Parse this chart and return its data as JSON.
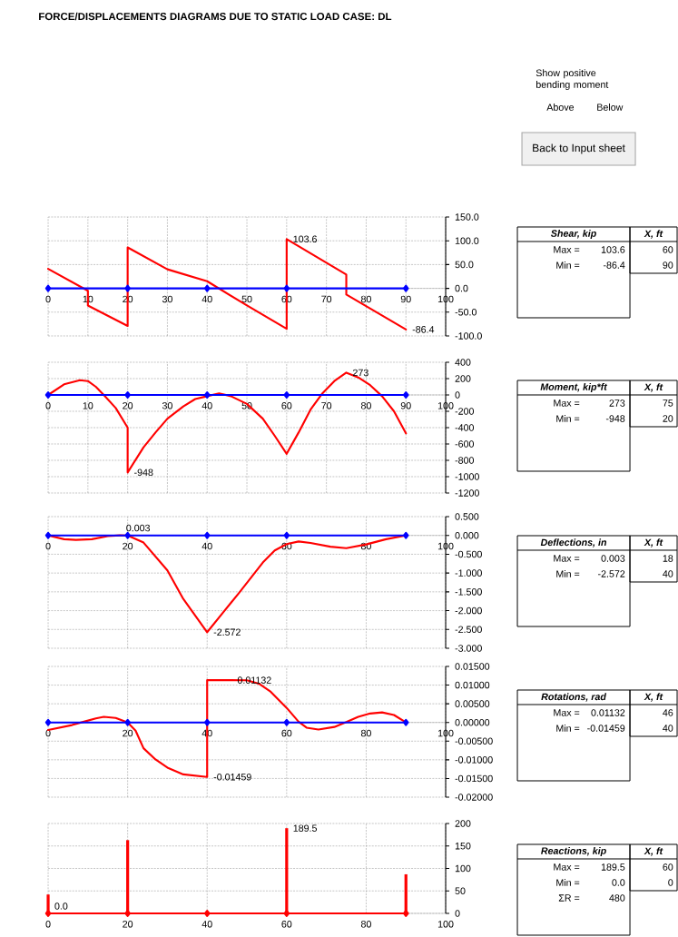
{
  "chart_data": [
    {
      "type": "other",
      "title": "FORCE/DISPLACEMENTS DIAGRAMS DUE TO STATIC LOAD CASE: DL",
      "annotations": [
        "Show positive bending moment",
        "Above",
        "Below",
        "Back to Input sheet"
      ]
    },
    {
      "type": "line",
      "xlim": [
        0,
        100
      ],
      "ylim": [
        -100,
        150
      ],
      "xticks": [
        0,
        10,
        20,
        30,
        40,
        50,
        60,
        70,
        80,
        90,
        100
      ],
      "yticks": [
        {
          "value": -100,
          "label": "-100.0"
        },
        {
          "value": -50,
          "label": "-50.0"
        },
        {
          "value": 0,
          "label": "0.0"
        },
        {
          "value": 50,
          "label": "50.0"
        },
        {
          "value": 100,
          "label": "100.0"
        },
        {
          "value": 150,
          "label": "150.0"
        }
      ],
      "grid": true,
      "series": [
        {
          "color": "#ff0000",
          "x": [
            0,
            10,
            10,
            20,
            20,
            30,
            40,
            50,
            60,
            60,
            75,
            75,
            90
          ],
          "values": [
            41,
            -5,
            -36,
            -79,
            86,
            40,
            15,
            -36,
            -85,
            103.6,
            29,
            -13,
            -86.4
          ]
        },
        {
          "color": "#0000ff",
          "marker": "diamond",
          "x": [
            0,
            20,
            40,
            60,
            90
          ],
          "values": [
            0,
            0,
            0,
            0,
            0
          ]
        }
      ],
      "annotations": [
        {
          "text": "103.6",
          "x": 60,
          "y": 103.6
        },
        {
          "text": "-86.4",
          "x": 90,
          "y": -86.4
        }
      ]
    },
    {
      "type": "other",
      "title": "Shear, kip",
      "annotations": [
        "X, ft",
        "Max =",
        "103.6",
        "60",
        "Min =",
        "-86.4",
        "90"
      ]
    },
    {
      "type": "line",
      "xlim": [
        0,
        100
      ],
      "ylim": [
        -1200,
        400
      ],
      "xticks": [
        0,
        10,
        20,
        30,
        40,
        50,
        60,
        70,
        80,
        90,
        100
      ],
      "yticks": [
        -1200,
        -1000,
        -800,
        -600,
        -400,
        -200,
        0,
        200,
        400
      ],
      "grid": true,
      "series": [
        {
          "color": "#ff0000",
          "x": [
            0,
            4,
            8,
            10,
            12,
            14,
            17,
            20,
            20,
            24,
            27,
            30,
            34,
            37,
            40,
            43,
            46,
            50,
            54,
            57,
            60,
            63,
            66,
            69,
            72,
            75,
            78,
            81,
            84,
            87,
            90
          ],
          "values": [
            0,
            130,
            180,
            170,
            100,
            0,
            -160,
            -400,
            -948,
            -640,
            -460,
            -290,
            -140,
            -50,
            -15,
            20,
            -15,
            -110,
            -290,
            -500,
            -720,
            -460,
            -180,
            20,
            170,
            273,
            215,
            120,
            -15,
            -200,
            -470
          ]
        },
        {
          "color": "#0000ff",
          "marker": "diamond",
          "x": [
            0,
            20,
            40,
            60,
            90
          ],
          "values": [
            0,
            0,
            0,
            0,
            0
          ]
        }
      ],
      "annotations": [
        {
          "text": "273",
          "x": 75,
          "y": 273
        },
        {
          "text": "-948",
          "x": 20,
          "y": -948
        }
      ]
    },
    {
      "type": "other",
      "title": "Moment, kip*ft",
      "annotations": [
        "X, ft",
        "Max =",
        "273",
        "75",
        "Min =",
        "-948",
        "20"
      ]
    },
    {
      "type": "line",
      "xlim": [
        0,
        100
      ],
      "ylim": [
        -3,
        0.5
      ],
      "xticks": [
        0,
        20,
        40,
        60,
        80,
        100
      ],
      "yticks": [
        {
          "value": -3,
          "label": "-3.000"
        },
        {
          "value": -2.5,
          "label": "-2.500"
        },
        {
          "value": -2,
          "label": "-2.000"
        },
        {
          "value": -1.5,
          "label": "-1.500"
        },
        {
          "value": -1,
          "label": "-1.000"
        },
        {
          "value": -0.5,
          "label": "-0.500"
        },
        {
          "value": 0,
          "label": "0.000"
        },
        {
          "value": 0.5,
          "label": "0.500"
        }
      ],
      "grid": true,
      "series": [
        {
          "color": "#ff0000",
          "x": [
            0,
            4,
            7,
            11,
            15,
            18,
            20,
            24,
            30,
            34,
            40,
            44,
            48,
            54,
            57,
            60,
            63,
            66,
            71,
            75,
            80,
            85,
            90
          ],
          "values": [
            0,
            -0.1,
            -0.12,
            -0.1,
            -0.02,
            0.003,
            0,
            -0.19,
            -0.93,
            -1.69,
            -2.572,
            -2.05,
            -1.53,
            -0.72,
            -0.4,
            -0.23,
            -0.16,
            -0.2,
            -0.3,
            -0.34,
            -0.24,
            -0.1,
            0
          ]
        },
        {
          "color": "#0000ff",
          "marker": "diamond",
          "x": [
            0,
            20,
            40,
            60,
            90
          ],
          "values": [
            0,
            0,
            0,
            0,
            0
          ]
        }
      ],
      "annotations": [
        {
          "text": "0.003",
          "x": 18,
          "y": 0.003
        },
        {
          "text": "-2.572",
          "x": 40,
          "y": -2.572
        }
      ]
    },
    {
      "type": "other",
      "title": "Deflections, in",
      "annotations": [
        "X, ft",
        "Max =",
        "0.003",
        "18",
        "Min =",
        "-2.572",
        "40"
      ]
    },
    {
      "type": "line",
      "xlim": [
        0,
        100
      ],
      "ylim": [
        -0.02,
        0.015
      ],
      "xticks": [
        0,
        20,
        40,
        60,
        80,
        100
      ],
      "yticks": [
        {
          "value": -0.02,
          "label": "-0.02000"
        },
        {
          "value": -0.015,
          "label": "-0.01500"
        },
        {
          "value": -0.01,
          "label": "-0.01000"
        },
        {
          "value": -0.005,
          "label": "-0.00500"
        },
        {
          "value": 0,
          "label": "0.00000"
        },
        {
          "value": 0.005,
          "label": "0.00500"
        },
        {
          "value": 0.01,
          "label": "0.01000"
        },
        {
          "value": 0.015,
          "label": "0.01500"
        }
      ],
      "grid": true,
      "series": [
        {
          "color": "#ff0000",
          "x": [
            0,
            6,
            9,
            12,
            14,
            17,
            20,
            22,
            24,
            27,
            30,
            34,
            40,
            40,
            46,
            50,
            53,
            56,
            60,
            63,
            65,
            68,
            72,
            75,
            78,
            81,
            84,
            87,
            90
          ],
          "values": [
            -0.002,
            -0.0007,
            0.0002,
            0.0011,
            0.0015,
            0.0012,
            0,
            -0.0022,
            -0.0069,
            -0.0099,
            -0.0121,
            -0.0139,
            -0.01459,
            0.01132,
            0.01132,
            0.0113,
            0.0104,
            0.0082,
            0.0039,
            0.0002,
            -0.0014,
            -0.0019,
            -0.0012,
            0.0001,
            0.0015,
            0.0024,
            0.0027,
            0.002,
            0
          ]
        },
        {
          "color": "#0000ff",
          "marker": "diamond",
          "x": [
            0,
            20,
            40,
            60,
            90
          ],
          "values": [
            0,
            0,
            0,
            0,
            0
          ]
        }
      ],
      "annotations": [
        {
          "text": "0.01132",
          "x": 46,
          "y": 0.01132
        },
        {
          "text": "-0.01459",
          "x": 40,
          "y": -0.01459
        }
      ]
    },
    {
      "type": "other",
      "title": "Rotations, rad",
      "annotations": [
        "X, ft",
        "Max =",
        "0.01132",
        "46",
        "Min =",
        "-0.01459",
        "40"
      ]
    },
    {
      "type": "bar",
      "xlim": [
        0,
        100
      ],
      "ylim": [
        0,
        200
      ],
      "xticks": [
        0,
        20,
        40,
        60,
        80,
        100
      ],
      "yticks": [
        0,
        50,
        100,
        150,
        200
      ],
      "grid": true,
      "series": [
        {
          "type": "bar",
          "color": "#ff0000",
          "x": [
            0,
            20,
            60,
            90
          ],
          "values": [
            42,
            163,
            189.5,
            87
          ]
        },
        {
          "type": "line",
          "color": "#ff0000",
          "marker": "diamond",
          "x": [
            0,
            20,
            40,
            60,
            90
          ],
          "values": [
            0,
            0,
            0,
            0,
            0
          ]
        }
      ],
      "annotations": [
        {
          "text": "189.5",
          "x": 60,
          "y": 189.5
        },
        {
          "text": "0.0",
          "x": 0,
          "y": 0
        }
      ]
    },
    {
      "type": "other",
      "title": "Reactions, kip",
      "annotations": [
        "X, ft",
        "Max =",
        "189.5",
        "60",
        "Min =",
        "0.0",
        "0",
        "ΣR =",
        "480"
      ]
    }
  ]
}
